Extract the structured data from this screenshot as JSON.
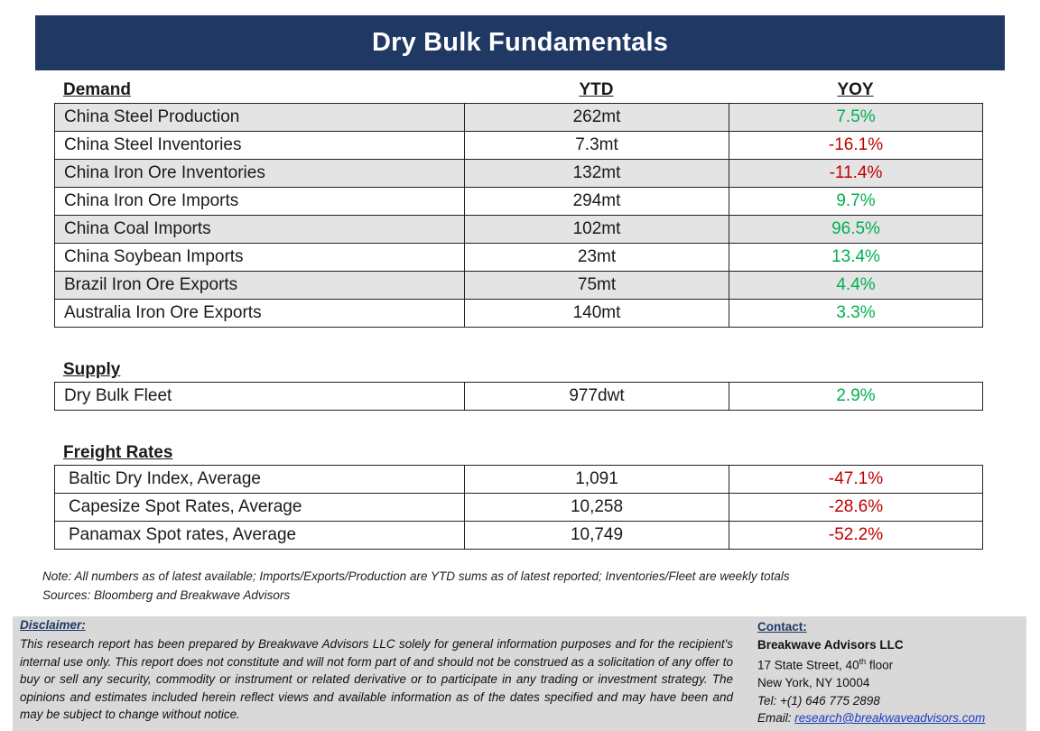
{
  "title": "Dry Bulk Fundamentals",
  "colors": {
    "banner_bg": "#1f3864",
    "positive": "#00b050",
    "negative": "#c00000",
    "row_shade": "#e4e4e4",
    "panel_bg": "#d9d9d9"
  },
  "headers": {
    "demand": "Demand",
    "ytd": "YTD",
    "yoy": "YOY"
  },
  "demand": {
    "rows": [
      {
        "label": "China Steel Production",
        "ytd": "262mt",
        "yoy": "7.5%",
        "sign": "pos"
      },
      {
        "label": "China Steel Inventories",
        "ytd": "7.3mt",
        "yoy": "-16.1%",
        "sign": "neg"
      },
      {
        "label": "China Iron Ore Inventories",
        "ytd": "132mt",
        "yoy": "-11.4%",
        "sign": "neg"
      },
      {
        "label": "China Iron Ore Imports",
        "ytd": "294mt",
        "yoy": "9.7%",
        "sign": "pos"
      },
      {
        "label": "China Coal Imports",
        "ytd": "102mt",
        "yoy": "96.5%",
        "sign": "pos"
      },
      {
        "label": "China Soybean Imports",
        "ytd": "23mt",
        "yoy": "13.4%",
        "sign": "pos"
      },
      {
        "label": "Brazil Iron Ore Exports",
        "ytd": "75mt",
        "yoy": "4.4%",
        "sign": "pos"
      },
      {
        "label": "Australia Iron Ore Exports",
        "ytd": "140mt",
        "yoy": "3.3%",
        "sign": "pos"
      }
    ]
  },
  "supply": {
    "title": "Supply",
    "rows": [
      {
        "label": "Dry Bulk Fleet",
        "ytd": "977dwt",
        "yoy": "2.9%",
        "sign": "pos"
      }
    ]
  },
  "freight": {
    "title": "Freight Rates",
    "rows": [
      {
        "label": "Baltic Dry Index, Average",
        "ytd": "1,091",
        "yoy": "-47.1%",
        "sign": "neg"
      },
      {
        "label": "Capesize Spot Rates, Average",
        "ytd": "10,258",
        "yoy": "-28.6%",
        "sign": "neg"
      },
      {
        "label": "Panamax Spot rates, Average",
        "ytd": "10,749",
        "yoy": "-52.2%",
        "sign": "neg"
      }
    ]
  },
  "notes": {
    "note": "Note:  All numbers as of latest available; Imports/Exports/Production are YTD sums as of latest reported; Inventories/Fleet are weekly totals",
    "sources": "Sources: Bloomberg and Breakwave Advisors"
  },
  "disclaimer": {
    "title": "Disclaimer:",
    "body": "This research report has been prepared by Breakwave Advisors LLC solely for general information purposes and for the recipient's internal use only. This report does not constitute and will not form part of and should not be construed as a solicitation of any offer to buy or sell any security, commodity or instrument or related derivative or to participate in any trading or investment strategy. The opinions and estimates included herein reflect views and available information as of the dates specified and may have been and may be subject to change without notice."
  },
  "contact": {
    "title": "Contact:",
    "company": "Breakwave Advisors LLC",
    "address1_pre": "17 State Street, 40",
    "address1_sup": "th",
    "address1_post": " floor",
    "address2": "New York, NY 10004",
    "tel": "Tel: +(1) 646 775 2898",
    "email_label": "Email: ",
    "email": "research@breakwaveadvisors.com"
  }
}
